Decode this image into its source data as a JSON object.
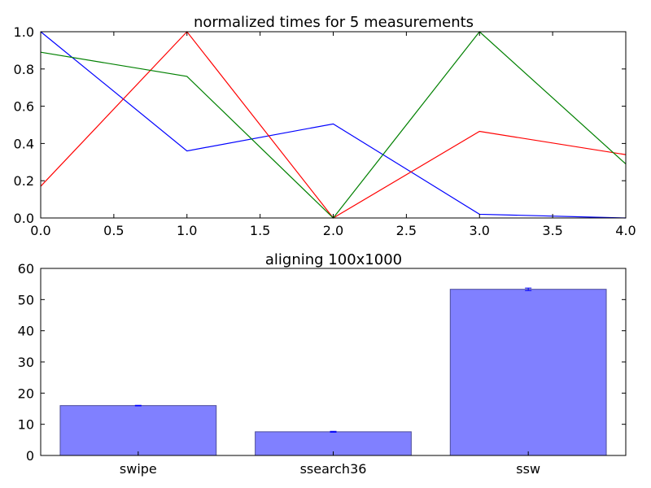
{
  "chart_data": [
    {
      "type": "line",
      "title": "normalized times for 5 measurements",
      "xlabel": "",
      "ylabel": "",
      "x": [
        0,
        1,
        2,
        3,
        4
      ],
      "xlim": [
        0,
        4
      ],
      "ylim": [
        0,
        1
      ],
      "xticks": [
        "0.0",
        "0.5",
        "1.0",
        "1.5",
        "2.0",
        "2.5",
        "3.0",
        "3.5",
        "4.0"
      ],
      "yticks": [
        "0.0",
        "0.2",
        "0.4",
        "0.6",
        "0.8",
        "1.0"
      ],
      "grid": false,
      "series": [
        {
          "color": "#0000ff",
          "values": [
            1.0,
            0.36,
            0.505,
            0.02,
            0.0
          ]
        },
        {
          "color": "#ff0000",
          "values": [
            0.17,
            1.0,
            0.0,
            0.465,
            0.34
          ]
        },
        {
          "color": "#008000",
          "values": [
            0.89,
            0.76,
            0.0,
            1.0,
            0.29
          ]
        }
      ]
    },
    {
      "type": "bar",
      "title": "aligning 100x1000",
      "xlabel": "",
      "ylabel": "",
      "categories": [
        "swipe",
        "ssearch36",
        "ssw"
      ],
      "values": [
        16.0,
        7.6,
        53.3
      ],
      "errors": [
        0.1,
        0.15,
        0.4
      ],
      "ylim": [
        0,
        60
      ],
      "yticks": [
        "0",
        "10",
        "20",
        "30",
        "40",
        "50",
        "60"
      ],
      "grid": false,
      "bar_color": "#8080ff",
      "bar_edge_color": "#4d4d99",
      "error_color": "#0000ff"
    }
  ]
}
